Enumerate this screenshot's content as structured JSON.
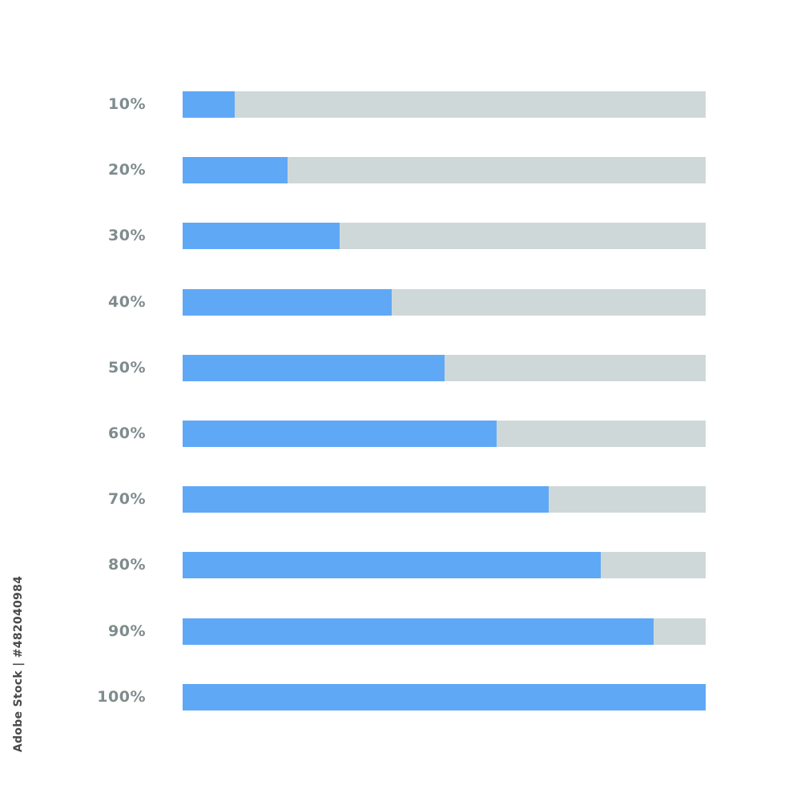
{
  "colors": {
    "fill": "#5fa8f6",
    "track": "#cfd8d8",
    "label": "#7f8c8d"
  },
  "progress_bars": [
    {
      "label": "10%",
      "fraction": 0.1
    },
    {
      "label": "20%",
      "fraction": 0.2
    },
    {
      "label": "30%",
      "fraction": 0.3
    },
    {
      "label": "40%",
      "fraction": 0.4
    },
    {
      "label": "50%",
      "fraction": 0.5
    },
    {
      "label": "60%",
      "fraction": 0.6
    },
    {
      "label": "70%",
      "fraction": 0.7
    },
    {
      "label": "80%",
      "fraction": 0.8
    },
    {
      "label": "90%",
      "fraction": 0.9
    },
    {
      "label": "100%",
      "fraction": 1.0
    }
  ],
  "stock_id": "Adobe Stock | #482040984"
}
